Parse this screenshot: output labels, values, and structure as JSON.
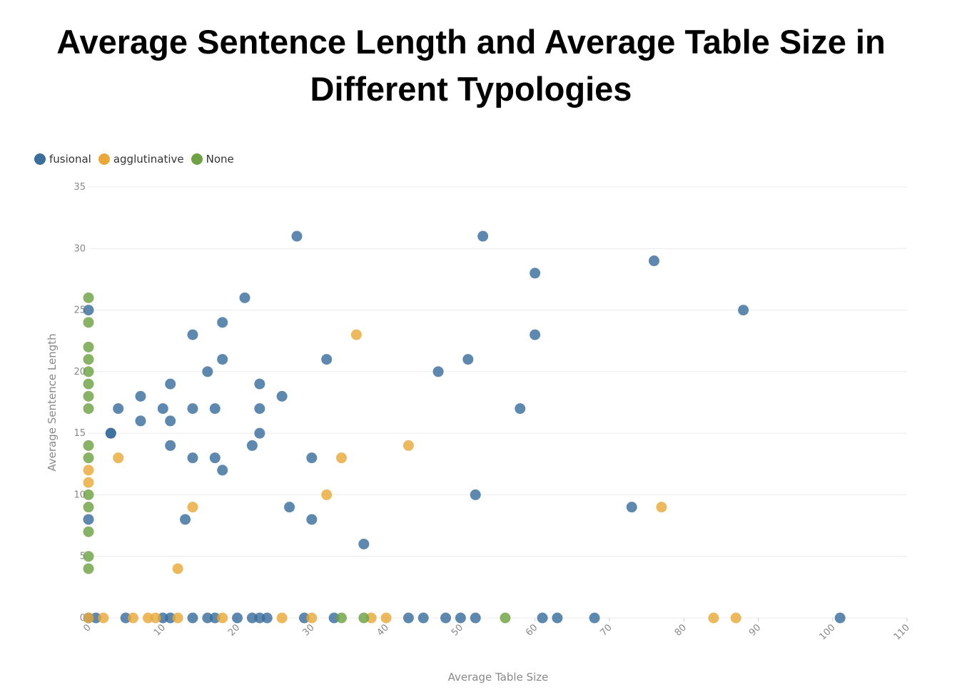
{
  "chart_data": {
    "type": "scatter",
    "title": "Average Sentence Length and Average Table Size in Different Typologies",
    "xlabel": "Average Table Size",
    "ylabel": "Average Sentence Length",
    "xlim": [
      0,
      110
    ],
    "ylim": [
      0,
      35
    ],
    "x_ticks": [
      0,
      10,
      20,
      30,
      40,
      50,
      60,
      70,
      80,
      90,
      100,
      110
    ],
    "y_ticks": [
      0,
      5,
      10,
      15,
      20,
      25,
      30,
      35
    ],
    "grid": "horizontal",
    "legend_position": "top-left",
    "series": [
      {
        "name": "fusional",
        "color": "#3b6e9b",
        "points": [
          [
            0,
            25
          ],
          [
            0,
            8
          ],
          [
            0,
            0
          ],
          [
            1,
            0
          ],
          [
            3,
            15
          ],
          [
            3,
            15
          ],
          [
            4,
            17
          ],
          [
            5,
            0
          ],
          [
            7,
            18
          ],
          [
            7,
            16
          ],
          [
            10,
            17
          ],
          [
            10,
            0
          ],
          [
            11,
            19
          ],
          [
            11,
            16
          ],
          [
            11,
            14
          ],
          [
            11,
            0
          ],
          [
            13,
            8
          ],
          [
            14,
            23
          ],
          [
            14,
            17
          ],
          [
            14,
            13
          ],
          [
            14,
            0
          ],
          [
            16,
            20
          ],
          [
            16,
            0
          ],
          [
            17,
            17
          ],
          [
            17,
            13
          ],
          [
            17,
            0
          ],
          [
            18,
            24
          ],
          [
            18,
            21
          ],
          [
            18,
            12
          ],
          [
            20,
            0
          ],
          [
            21,
            26
          ],
          [
            22,
            14
          ],
          [
            22,
            0
          ],
          [
            23,
            19
          ],
          [
            23,
            17
          ],
          [
            23,
            15
          ],
          [
            23,
            0
          ],
          [
            24,
            0
          ],
          [
            26,
            18
          ],
          [
            27,
            9
          ],
          [
            28,
            31
          ],
          [
            29,
            0
          ],
          [
            30,
            13
          ],
          [
            30,
            8
          ],
          [
            32,
            21
          ],
          [
            33,
            0
          ],
          [
            37,
            6
          ],
          [
            43,
            0
          ],
          [
            45,
            0
          ],
          [
            47,
            20
          ],
          [
            48,
            0
          ],
          [
            50,
            0
          ],
          [
            51,
            21
          ],
          [
            52,
            10
          ],
          [
            52,
            0
          ],
          [
            53,
            31
          ],
          [
            58,
            17
          ],
          [
            60,
            28
          ],
          [
            60,
            23
          ],
          [
            61,
            0
          ],
          [
            63,
            0
          ],
          [
            68,
            0
          ],
          [
            73,
            9
          ],
          [
            76,
            29
          ],
          [
            88,
            25
          ],
          [
            101,
            0
          ]
        ]
      },
      {
        "name": "agglutinative",
        "color": "#e8a93a",
        "points": [
          [
            0,
            12
          ],
          [
            0,
            11
          ],
          [
            0,
            0
          ],
          [
            2,
            0
          ],
          [
            4,
            13
          ],
          [
            6,
            0
          ],
          [
            8,
            0
          ],
          [
            9,
            0
          ],
          [
            12,
            4
          ],
          [
            12,
            0
          ],
          [
            14,
            9
          ],
          [
            18,
            0
          ],
          [
            26,
            0
          ],
          [
            30,
            0
          ],
          [
            32,
            10
          ],
          [
            34,
            13
          ],
          [
            36,
            23
          ],
          [
            38,
            0
          ],
          [
            40,
            0
          ],
          [
            43,
            14
          ],
          [
            77,
            9
          ],
          [
            84,
            0
          ],
          [
            87,
            0
          ]
        ]
      },
      {
        "name": "None",
        "color": "#6ea244",
        "points": [
          [
            0,
            26
          ],
          [
            0,
            24
          ],
          [
            0,
            22
          ],
          [
            0,
            21
          ],
          [
            0,
            20
          ],
          [
            0,
            19
          ],
          [
            0,
            18
          ],
          [
            0,
            17
          ],
          [
            0,
            14
          ],
          [
            0,
            13
          ],
          [
            0,
            10
          ],
          [
            0,
            9
          ],
          [
            0,
            7
          ],
          [
            0,
            5
          ],
          [
            0,
            4
          ],
          [
            34,
            0
          ],
          [
            37,
            0
          ],
          [
            56,
            0
          ]
        ]
      }
    ]
  }
}
